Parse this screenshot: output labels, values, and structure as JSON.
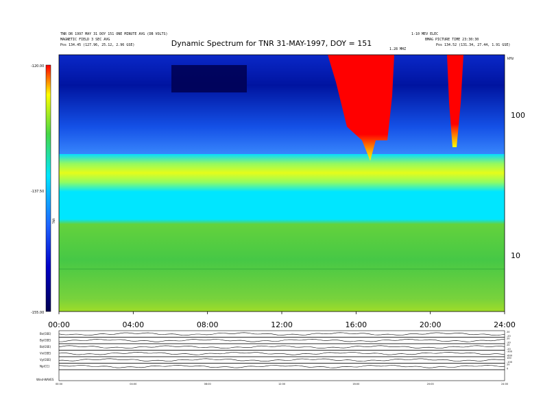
{
  "header": {
    "left_line1": "TNR DR 1997 MAY 31 DOY 151 ONE MINUTE AVG (DB VOLTS)",
    "left_line2": "MAGNETIC FIELD 3 SEC AVG",
    "left_line3": "Pos 134.45 (127.96, 25.12, 2.96 GSE)",
    "right_line1": "1-10 MEV ELEC",
    "right_line2": "BMAG PICTURE TIME 23:30:30",
    "right_line3": "Pos 134.52 (131.34, 27.44, 1.91 GSE)",
    "right_top_small": "1.28 MHZ"
  },
  "chart_title": "Dynamic Spectrum for TNR 31-MAY-1997, DOY = 151",
  "chart_data": [
    {
      "type": "heatmap",
      "title": "Dynamic Spectrum for TNR 31-MAY-1997, DOY = 151",
      "x_ticks": [
        "00:00",
        "04:00",
        "08:00",
        "12:00",
        "16:00",
        "20:00",
        "24:00"
      ],
      "x_range_hours": [
        0,
        24
      ],
      "y_scale": "log",
      "y_unit": "kHz",
      "y_range": [
        4,
        220
      ],
      "y_ticks": [
        "100",
        "10"
      ],
      "colorbar_ticks": [
        "-120.00",
        "-137.50",
        "-155.00"
      ],
      "colorbar_range": [
        -155,
        -120
      ],
      "colorbar_label": "TNR",
      "colormap": [
        "#000050",
        "#0000c8",
        "#1e64ff",
        "#00e6ff",
        "#46d746",
        "#ffff00",
        "#ff0000"
      ],
      "features": [
        {
          "label": "type III bursts",
          "x_hours": [
            14.6,
            17.6
          ],
          "y_khz": [
            60,
            220
          ],
          "level_db": -120
        },
        {
          "label": "type III burst",
          "x_hours": [
            20.6,
            21.4
          ],
          "y_khz": [
            55,
            220
          ],
          "level_db": -120
        },
        {
          "label": "plasma line",
          "x_hours": [
            0,
            24
          ],
          "y_khz": [
            33,
            50
          ],
          "level_db": -132
        }
      ]
    },
    {
      "type": "line",
      "series": [
        {
          "name": "Bx(GSE)",
          "ticks": [
            "20",
            "-20"
          ]
        },
        {
          "name": "By(GSE)",
          "ticks": [
            "20",
            "-20"
          ]
        },
        {
          "name": "Bz(GSE)",
          "ticks": [
            "20",
            "-20"
          ]
        },
        {
          "name": "Vx(GSE)",
          "ticks": [
            "-300",
            "-600"
          ]
        },
        {
          "name": "Vy(GSE)",
          "ticks": [
            "100",
            "-100"
          ]
        },
        {
          "name": "Np(CC)",
          "ticks": [
            "20",
            "0"
          ]
        }
      ],
      "x_ticks": [
        "00:00",
        "04:00",
        "08:00",
        "12:00",
        "16:00",
        "20:00",
        "24:00"
      ]
    }
  ],
  "footer": {
    "left": "Wind-WAVES",
    "right": ""
  }
}
